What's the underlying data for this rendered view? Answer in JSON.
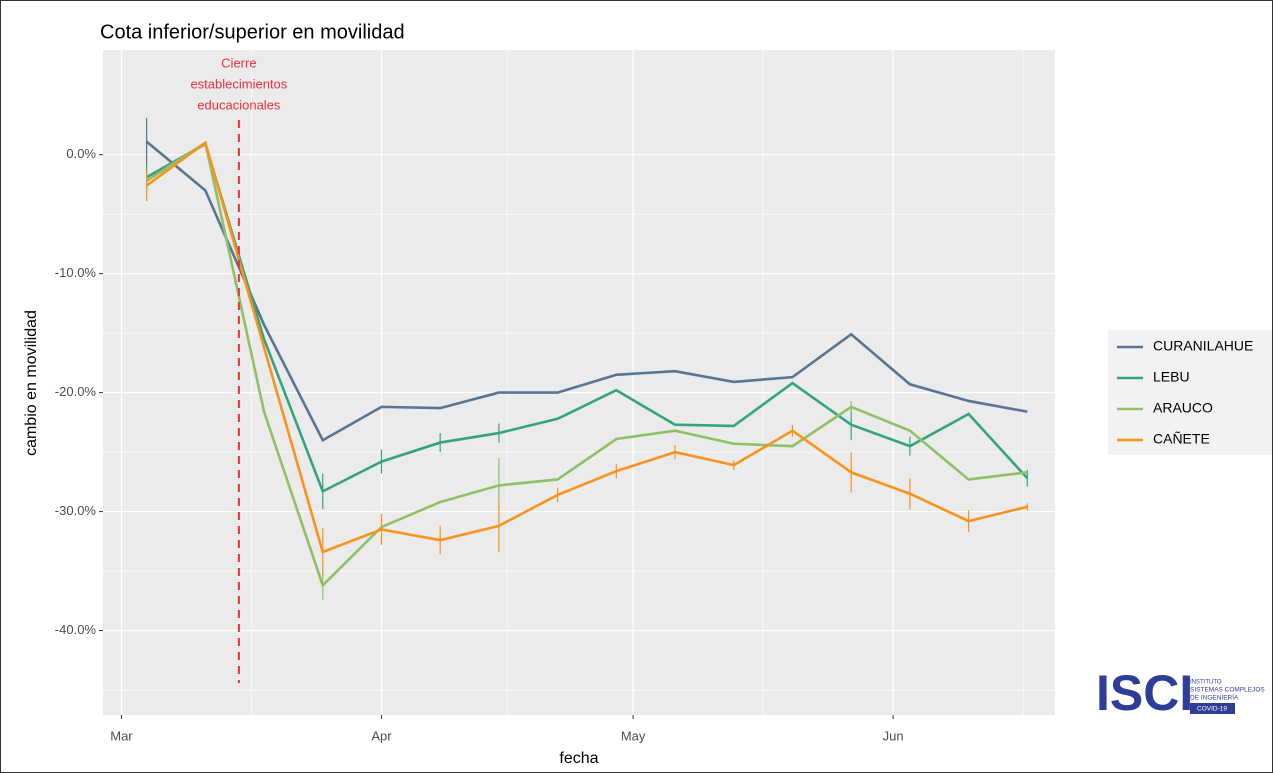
{
  "chart_data": {
    "type": "line",
    "title": "Cota inferior/superior en movilidad",
    "x_label": "fecha",
    "y_label": "cambio en movilidad",
    "x": [
      3,
      10,
      17,
      24,
      31,
      38,
      45,
      52,
      59,
      66,
      73,
      80,
      87,
      94,
      101,
      108
    ],
    "xlim": [
      -2.2,
      111.3
    ],
    "xticks": [
      {
        "value": 0,
        "label": "Mar"
      },
      {
        "value": 31,
        "label": "Apr"
      },
      {
        "value": 61,
        "label": "May"
      },
      {
        "value": 92,
        "label": "Jun"
      }
    ],
    "ylim": [
      -47.1,
      8.8
    ],
    "yticks": [
      {
        "value": -40,
        "label": "-40.0%"
      },
      {
        "value": -30,
        "label": "-30.0%"
      },
      {
        "value": -20,
        "label": "-20.0%"
      },
      {
        "value": -10,
        "label": "-10.0%"
      },
      {
        "value": 0,
        "label": "0.0%"
      }
    ],
    "grid": true,
    "legend": "right",
    "vline": {
      "x": 14,
      "color": "#e8323c",
      "label": [
        "Cierre",
        "establecimientos",
        "educacionales"
      ]
    },
    "series": [
      {
        "name": "CURANILAHUE",
        "color": "#587591",
        "values": [
          1.1,
          -3.0,
          -14.3,
          -24.0,
          -21.2,
          -21.3,
          -20.0,
          -20.0,
          -18.5,
          -18.2,
          -19.1,
          -18.7,
          -15.1,
          -19.3,
          -20.7,
          -21.6
        ],
        "errors": [
          2.0,
          null,
          null,
          null,
          null,
          null,
          null,
          null,
          null,
          null,
          null,
          null,
          null,
          null,
          null,
          null
        ]
      },
      {
        "name": "LEBU",
        "color": "#35a47e",
        "values": [
          -1.9,
          0.9,
          -15.5,
          -28.3,
          -25.8,
          -24.2,
          -23.4,
          -22.2,
          -19.8,
          -22.7,
          -22.8,
          -19.2,
          -22.7,
          -24.5,
          -21.8,
          -27.2
        ],
        "errors": [
          1.0,
          null,
          null,
          1.5,
          1.0,
          0.8,
          0.8,
          null,
          null,
          null,
          null,
          null,
          1.3,
          0.8,
          null,
          0.7
        ]
      },
      {
        "name": "ARAUCO",
        "color": "#8fc066",
        "values": [
          -2.2,
          1.0,
          -21.6,
          -36.2,
          -31.3,
          -29.2,
          -27.8,
          -27.3,
          -23.9,
          -23.2,
          -24.3,
          -24.5,
          -21.2,
          -23.2,
          -27.3,
          -26.7
        ],
        "errors": [
          null,
          null,
          null,
          1.2,
          null,
          null,
          2.3,
          null,
          null,
          null,
          null,
          null,
          0.5,
          null,
          null,
          null
        ]
      },
      {
        "name": "CAÑETE",
        "color": "#f7931e",
        "values": [
          -2.6,
          1.0,
          -16.2,
          -33.4,
          -31.5,
          -32.4,
          -31.2,
          -28.6,
          -26.6,
          -25.0,
          -26.1,
          -23.2,
          -26.7,
          -28.5,
          -30.8,
          -29.6
        ],
        "errors": [
          1.3,
          null,
          null,
          2.0,
          1.3,
          1.2,
          2.2,
          0.6,
          0.6,
          0.6,
          0.4,
          0.5,
          1.7,
          1.3,
          0.9,
          0.3
        ]
      }
    ]
  },
  "logo": {
    "mark": "ISCI",
    "lines": [
      "INSTITUTO",
      "SISTEMAS COMPLEJOS",
      "DE INGENIERÍA"
    ],
    "badge": "COVID-19"
  }
}
